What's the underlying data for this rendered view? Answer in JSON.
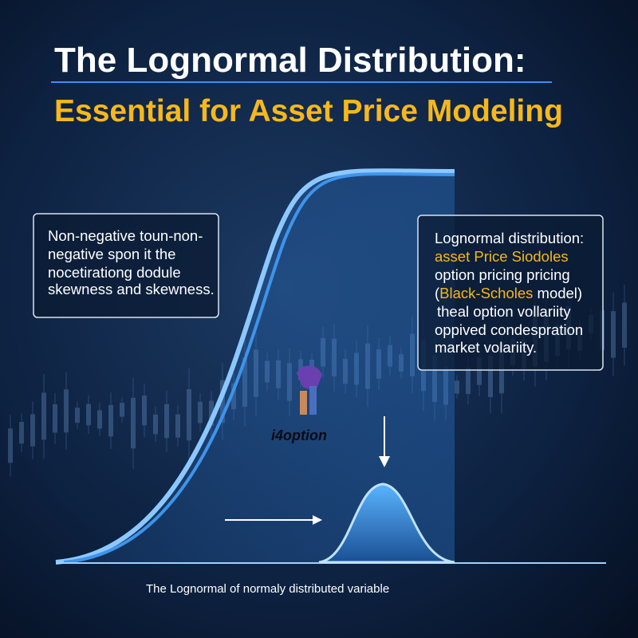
{
  "header": {
    "title": "The Lognormal Distribution:",
    "subtitle": "Essential for Asset Price Modeling"
  },
  "left_box": {
    "lines": [
      "Non-negative toun-non-",
      "negative spon it the",
      "nocetirationg dodule",
      "skewness and skewness."
    ]
  },
  "right_box": {
    "lines": [
      [
        "Lognormal distribution:"
      ],
      [
        "asset Price Siodoles"
      ],
      [
        "option pricing pricing"
      ],
      [
        "(",
        "Black-Scholes",
        " model)"
      ],
      [
        "theal option vollariity"
      ],
      [
        "oppived condespration"
      ],
      [
        "market volariity."
      ]
    ]
  },
  "logo": {
    "text": "i4option"
  },
  "caption": "The Lognormal of normaly distributed variable"
}
